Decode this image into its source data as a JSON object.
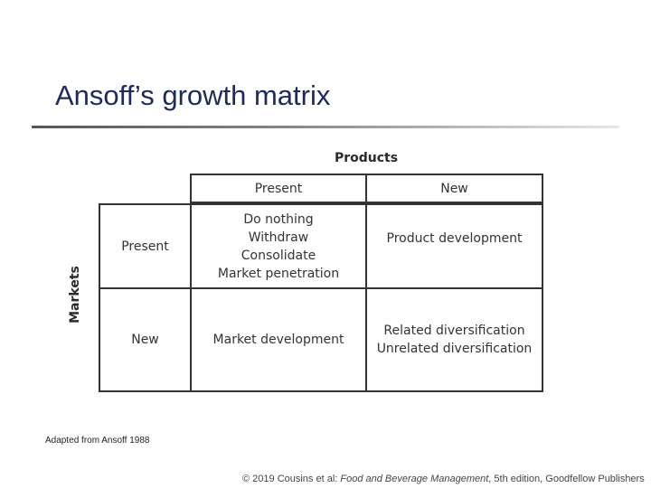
{
  "title": "Ansoff’s growth matrix",
  "matrix": {
    "column_axis_label": "Products",
    "row_axis_label": "Markets",
    "column_headers": [
      "Present",
      "New"
    ],
    "row_headers": [
      "Present",
      "New"
    ],
    "cells": {
      "present_market_present_product": "Do nothing\nWithdraw\nConsolidate\nMarket penetration",
      "present_market_new_product": "Product development",
      "new_market_present_product": "Market development",
      "new_market_new_product": "Related diversification\nUnrelated diversification"
    }
  },
  "source_note": "Adapted from Ansoff 1988",
  "footer": {
    "prefix": "© 2019 Cousins et al: ",
    "book_title": "Food and Beverage Management",
    "suffix": ", 5th edition, Goodfellow Publishers"
  },
  "colors": {
    "title": "#1f2a5c",
    "grid_lines": "#333333"
  }
}
